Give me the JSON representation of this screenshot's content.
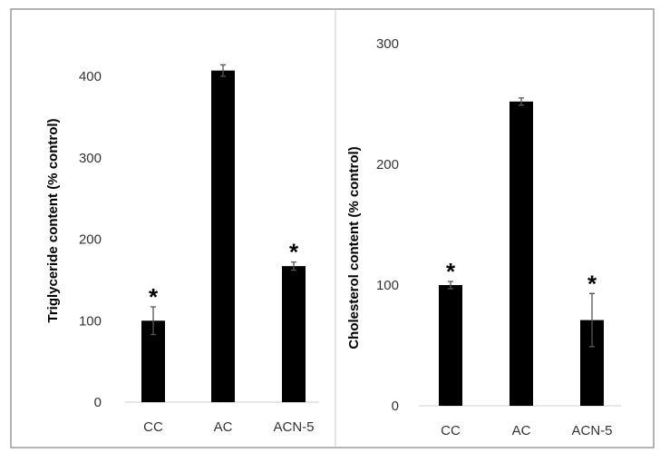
{
  "chart_data": [
    {
      "type": "bar",
      "categories": [
        "CC",
        "AC",
        "ACN-5"
      ],
      "values": [
        100,
        407,
        167
      ],
      "errors": [
        17,
        7,
        5
      ],
      "significance": [
        "*",
        "",
        "*"
      ],
      "ylabel": "Triglyceride content (% control)",
      "ylim": [
        0,
        400
      ],
      "yticks": [
        "0",
        "100",
        "200",
        "300",
        "400"
      ],
      "color": "#000000",
      "grid": false
    },
    {
      "type": "bar",
      "categories": [
        "CC",
        "AC",
        "ACN-5"
      ],
      "values": [
        100,
        252,
        71
      ],
      "errors": [
        3,
        3,
        22
      ],
      "significance": [
        "*",
        "",
        "*"
      ],
      "ylabel": "Cholesterol content (% control)",
      "ylim": [
        0,
        300
      ],
      "yticks": [
        "0",
        "100",
        "200",
        "300"
      ],
      "color": "#000000",
      "grid": false
    }
  ]
}
